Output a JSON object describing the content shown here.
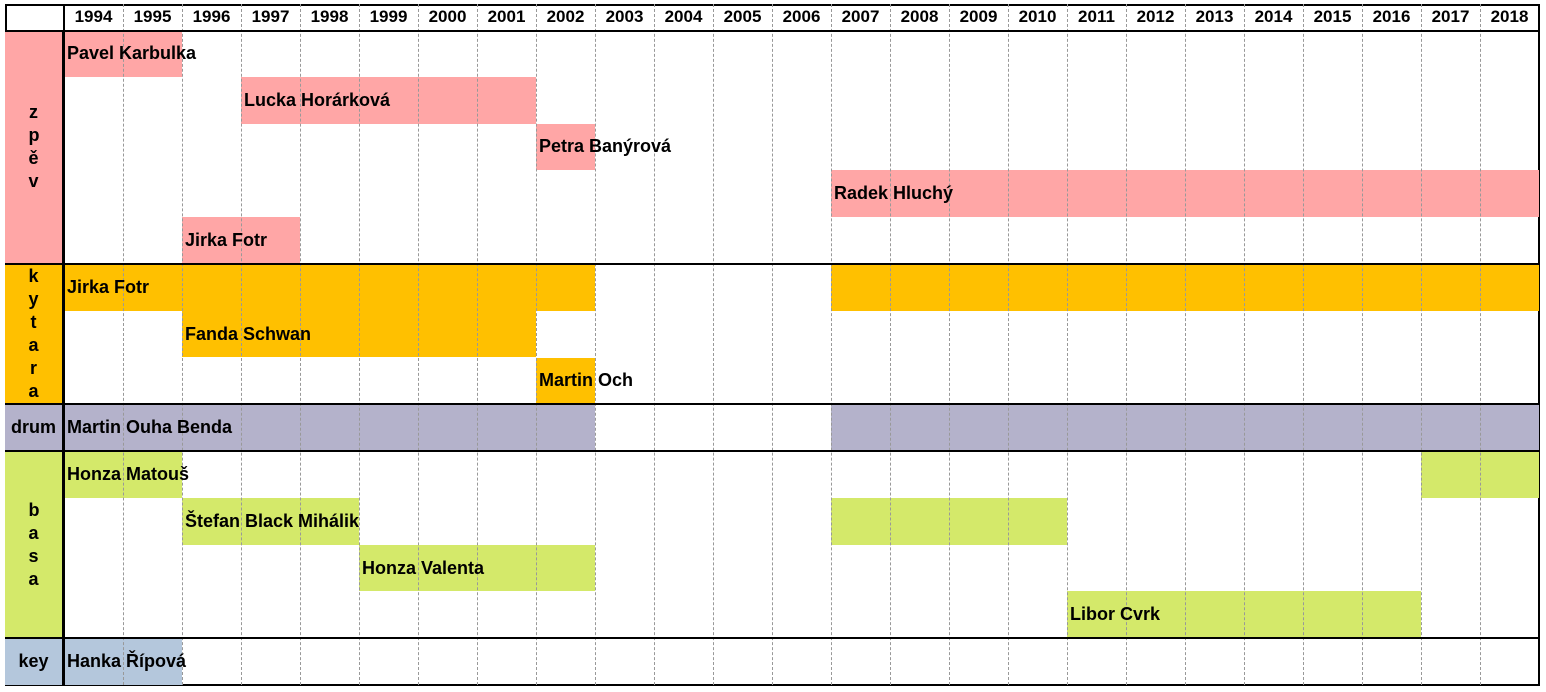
{
  "years": [
    "1994",
    "1995",
    "1996",
    "1997",
    "1998",
    "1999",
    "2000",
    "2001",
    "2002",
    "2003",
    "2004",
    "2005",
    "2006",
    "2007",
    "2008",
    "2009",
    "2010",
    "2011",
    "2012",
    "2013",
    "2014",
    "2015",
    "2016",
    "2017",
    "2018"
  ],
  "sections": [
    {
      "label": "zpěv",
      "color": "#ffa6a6",
      "rows": [
        {
          "bars": [
            {
              "name": "Pavel Karbulka",
              "from": 1994,
              "to": 1995
            }
          ]
        },
        {
          "bars": [
            {
              "name": "Lucka Horárková",
              "from": 1997,
              "to": 2001
            }
          ]
        },
        {
          "bars": [
            {
              "name": "Petra Banýrová",
              "from": 2002,
              "to": 2002
            }
          ]
        },
        {
          "bars": [
            {
              "name": "Radek Hluchý",
              "from": 2007,
              "to": 2018
            }
          ]
        },
        {
          "bars": [
            {
              "name": "Jirka Fotr",
              "from": 1996,
              "to": 1997
            }
          ]
        }
      ]
    },
    {
      "label": "kytara",
      "color": "#ffc000",
      "rows": [
        {
          "bars": [
            {
              "name": "Jirka Fotr",
              "from": 1994,
              "to": 2002
            },
            {
              "from": 2007,
              "to": 2018
            }
          ]
        },
        {
          "bars": [
            {
              "name": "Fanda Schwan",
              "from": 1996,
              "to": 2001
            }
          ]
        },
        {
          "bars": [
            {
              "name": "Martin Och",
              "from": 2002,
              "to": 2002
            }
          ]
        }
      ]
    },
    {
      "label": "drum",
      "color": "#b4b2cb",
      "rows": [
        {
          "bars": [
            {
              "name": "Martin Ouha Benda",
              "from": 1994,
              "to": 2002
            },
            {
              "from": 2007,
              "to": 2018
            }
          ]
        }
      ]
    },
    {
      "label": "basa",
      "color": "#d4e96a",
      "rows": [
        {
          "bars": [
            {
              "name": "Honza Matouš",
              "from": 1994,
              "to": 1995
            },
            {
              "from": 2017,
              "to": 2018
            }
          ]
        },
        {
          "bars": [
            {
              "name": "Štefan Black Mihálik",
              "from": 1996,
              "to": 1998
            },
            {
              "from": 2007,
              "to": 2010
            }
          ]
        },
        {
          "bars": [
            {
              "name": "Honza Valenta",
              "from": 1999,
              "to": 2002
            }
          ]
        },
        {
          "bars": [
            {
              "name": "Libor Cvrk",
              "from": 2011,
              "to": 2016
            }
          ]
        }
      ]
    },
    {
      "label": "key",
      "color": "#b4c7dc",
      "rows": [
        {
          "bars": [
            {
              "name": "Hanka Řípová",
              "from": 1994,
              "to": 1995
            }
          ]
        }
      ]
    }
  ]
}
